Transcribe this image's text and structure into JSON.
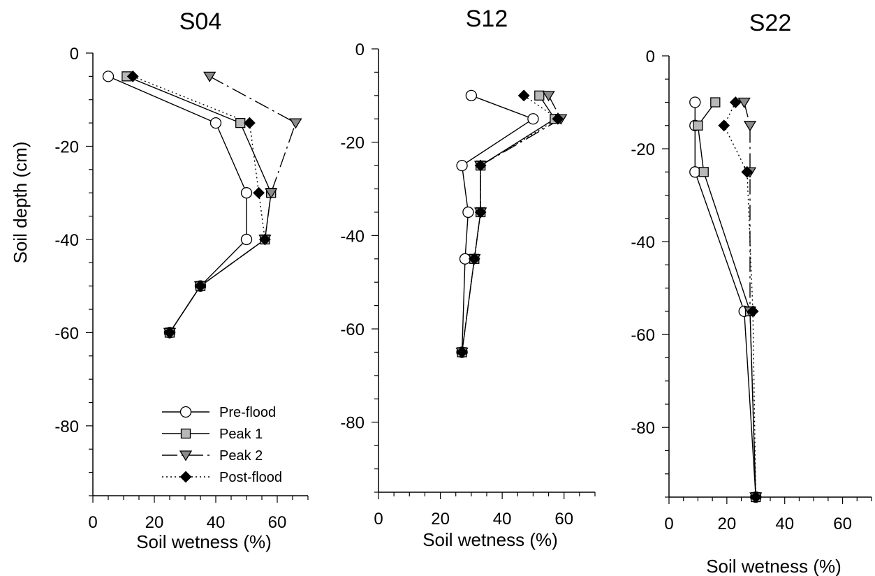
{
  "figure": {
    "ylabel": "Soil depth (cm)"
  },
  "legend": {
    "items": [
      {
        "label": "Pre-flood",
        "marker": "circle"
      },
      {
        "label": "Peak 1",
        "marker": "square"
      },
      {
        "label": "Peak 2",
        "marker": "triangle-down"
      },
      {
        "label": "Post-flood",
        "marker": "diamond"
      }
    ]
  },
  "chart_data": [
    {
      "type": "line",
      "title": "S04",
      "xlabel": "Soil wetness (%)",
      "ylabel": "Soil depth (cm)",
      "xlim": [
        0,
        70
      ],
      "ylim": [
        -95,
        0
      ],
      "xticks": [
        0,
        20,
        40,
        60
      ],
      "yticks": [
        0,
        -20,
        -40,
        -60,
        -80
      ],
      "grid": false,
      "legend_position": "bottom-right",
      "series": [
        {
          "name": "Pre-flood",
          "points": [
            [
              5,
              -5
            ],
            [
              40,
              -15
            ],
            [
              50,
              -30
            ],
            [
              50,
              -40
            ],
            [
              35,
              -50
            ],
            [
              25,
              -60
            ]
          ]
        },
        {
          "name": "Peak 1",
          "points": [
            [
              11,
              -5
            ],
            [
              48,
              -15
            ],
            [
              58,
              -30
            ],
            [
              56,
              -40
            ],
            [
              35,
              -50
            ],
            [
              25,
              -60
            ]
          ]
        },
        {
          "name": "Peak 2",
          "points": [
            [
              38,
              -5
            ],
            [
              66,
              -15
            ],
            [
              58,
              -30
            ],
            [
              56,
              -40
            ],
            [
              35,
              -50
            ],
            [
              25,
              -60
            ]
          ]
        },
        {
          "name": "Post-flood",
          "points": [
            [
              13,
              -5
            ],
            [
              51,
              -15
            ],
            [
              54,
              -30
            ],
            [
              56,
              -40
            ],
            [
              35,
              -50
            ],
            [
              25,
              -60
            ]
          ]
        }
      ]
    },
    {
      "type": "line",
      "title": "S12",
      "xlabel": "Soil wetness (%)",
      "ylabel": "",
      "xlim": [
        0,
        70
      ],
      "ylim": [
        -95,
        0
      ],
      "xticks": [
        0,
        20,
        40,
        60
      ],
      "yticks": [
        0,
        -20,
        -40,
        -60,
        -80
      ],
      "grid": false,
      "series": [
        {
          "name": "Pre-flood",
          "points": [
            [
              30,
              -10
            ],
            [
              50,
              -15
            ],
            [
              27,
              -25
            ],
            [
              29,
              -35
            ],
            [
              28,
              -45
            ],
            [
              27,
              -65
            ]
          ]
        },
        {
          "name": "Peak 1",
          "points": [
            [
              52,
              -10
            ],
            [
              57,
              -15
            ],
            [
              33,
              -25
            ],
            [
              33,
              -35
            ],
            [
              31,
              -45
            ],
            [
              27,
              -65
            ]
          ]
        },
        {
          "name": "Peak 2",
          "points": [
            [
              55,
              -10
            ],
            [
              59,
              -15
            ],
            [
              33,
              -25
            ],
            [
              33,
              -35
            ],
            [
              31,
              -45
            ],
            [
              27,
              -65
            ]
          ]
        },
        {
          "name": "Post-flood",
          "points": [
            [
              47,
              -10
            ],
            [
              58,
              -15
            ],
            [
              33,
              -25
            ],
            [
              33,
              -35
            ],
            [
              31,
              -45
            ],
            [
              27,
              -65
            ]
          ]
        }
      ]
    },
    {
      "type": "line",
      "title": "S22",
      "xlabel": "Soil wetness (%)",
      "ylabel": "",
      "xlim": [
        0,
        70
      ],
      "ylim": [
        -95,
        0
      ],
      "xticks": [
        0,
        20,
        40,
        60
      ],
      "yticks": [
        0,
        -20,
        -40,
        -60,
        -80
      ],
      "grid": false,
      "series": [
        {
          "name": "Pre-flood",
          "points": [
            [
              9,
              -10
            ],
            [
              9,
              -15
            ],
            [
              9,
              -25
            ],
            [
              26,
              -55
            ],
            [
              30,
              -95
            ]
          ]
        },
        {
          "name": "Peak 1",
          "points": [
            [
              16,
              -10
            ],
            [
              10,
              -15
            ],
            [
              12,
              -25
            ],
            [
              28,
              -55
            ],
            [
              30,
              -95
            ]
          ]
        },
        {
          "name": "Peak 2",
          "points": [
            [
              26,
              -10
            ],
            [
              28,
              -15
            ],
            [
              28,
              -25
            ],
            [
              28,
              -55
            ],
            [
              30,
              -95
            ]
          ]
        },
        {
          "name": "Post-flood",
          "points": [
            [
              23,
              -10
            ],
            [
              19,
              -15
            ],
            [
              27,
              -25
            ],
            [
              29,
              -55
            ],
            [
              30,
              -95
            ]
          ]
        }
      ]
    }
  ]
}
